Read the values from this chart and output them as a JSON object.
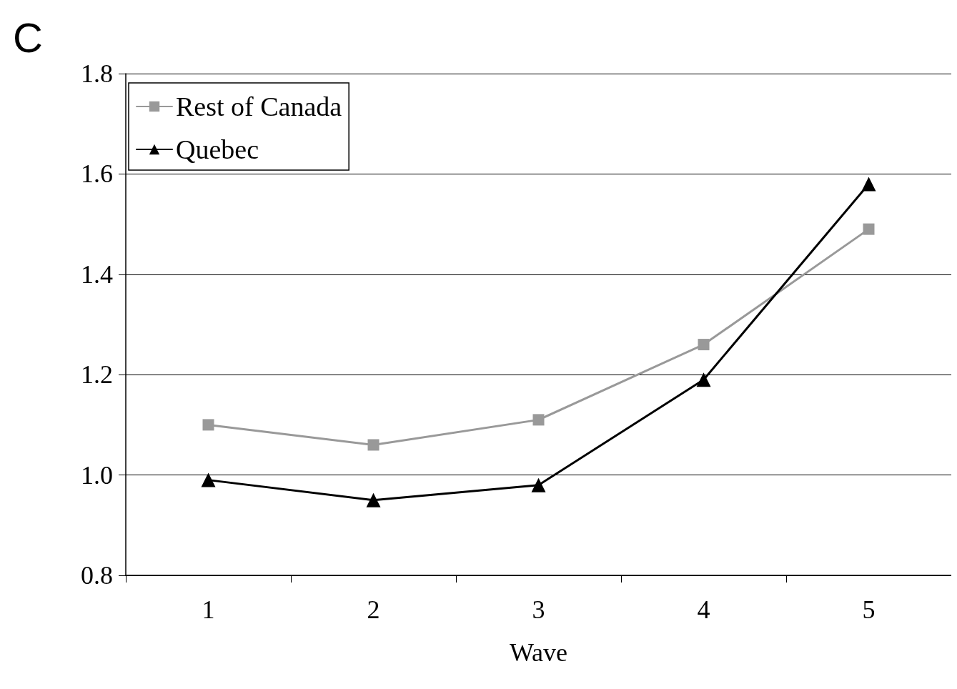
{
  "chart_data": {
    "type": "line",
    "xlabel": "Wave",
    "categories": [
      "1",
      "2",
      "3",
      "4",
      "5"
    ],
    "series": [
      {
        "name": "Rest of Canada",
        "color": "#999999",
        "marker": "square",
        "values": [
          1.1,
          1.06,
          1.11,
          1.26,
          1.49
        ]
      },
      {
        "name": "Quebec",
        "color": "#000000",
        "marker": "triangle",
        "values": [
          0.99,
          0.95,
          0.98,
          1.19,
          1.58
        ]
      }
    ],
    "ylim": [
      0.8,
      1.8
    ],
    "yticks": [
      {
        "value": 0.8,
        "label": "0.8"
      },
      {
        "value": 1.0,
        "label": "1.0"
      },
      {
        "value": 1.2,
        "label": "1.2"
      },
      {
        "value": 1.4,
        "label": "1.4"
      },
      {
        "value": 1.6,
        "label": "1.6"
      },
      {
        "value": 1.8,
        "label": "1.8"
      }
    ],
    "grid": "y",
    "legend": "top left",
    "line_style": "solid",
    "annotations": [
      "C"
    ]
  }
}
